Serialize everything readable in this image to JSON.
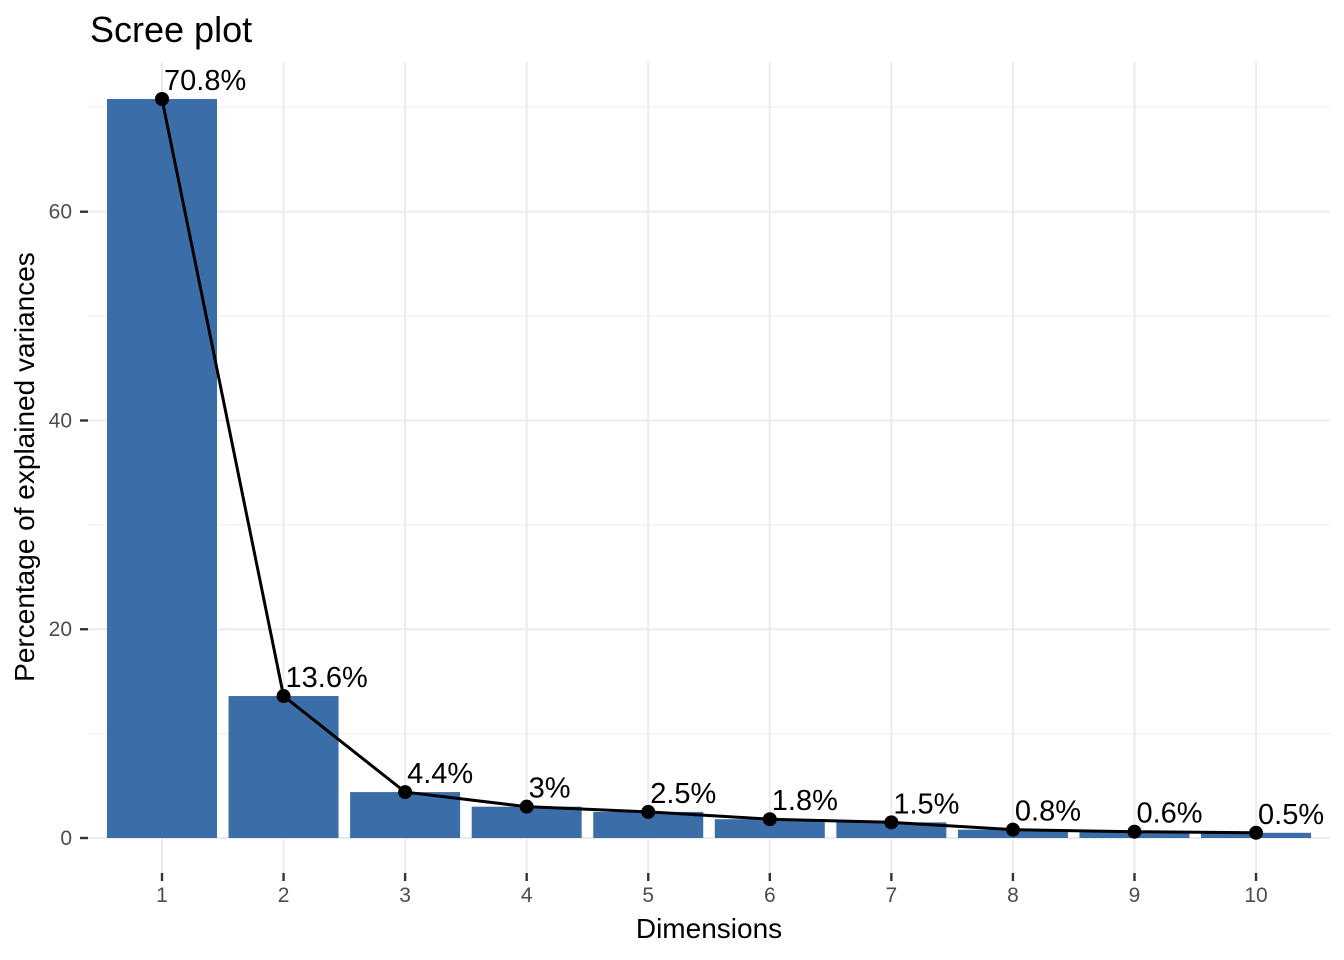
{
  "chart_data": {
    "type": "bar",
    "subtype": "scree-plot-bar-with-line",
    "title": "Scree plot",
    "xlabel": "Dimensions",
    "ylabel": "Percentage of explained variances",
    "categories": [
      "1",
      "2",
      "3",
      "4",
      "5",
      "6",
      "7",
      "8",
      "9",
      "10"
    ],
    "values": [
      70.8,
      13.6,
      4.4,
      3,
      2.5,
      1.8,
      1.5,
      0.8,
      0.6,
      0.5
    ],
    "value_labels": [
      "70.8%",
      "13.6%",
      "4.4%",
      "3%",
      "2.5%",
      "1.8%",
      "1.5%",
      "0.8%",
      "0.6%",
      "0.5%"
    ],
    "y_major_ticks": [
      0,
      20,
      40,
      60
    ],
    "y_major_tick_labels": [
      "0",
      "20",
      "40",
      "60"
    ],
    "y_minor_ticks": [
      10,
      30,
      50,
      70
    ],
    "ylim": [
      0,
      74.3
    ],
    "grid": true,
    "legend": "none",
    "colors": {
      "bar_fill": "#3B6EA8",
      "line": "#000000",
      "point": "#000000",
      "value_label": "#000000",
      "grid_major": "#EBEBEB",
      "grid_minor": "#F1F1F1",
      "tick_mark": "#333333",
      "tick_label": "#4D4D4D",
      "axis_title": "#000000",
      "title": "#000000",
      "background": "#FFFFFF"
    }
  }
}
